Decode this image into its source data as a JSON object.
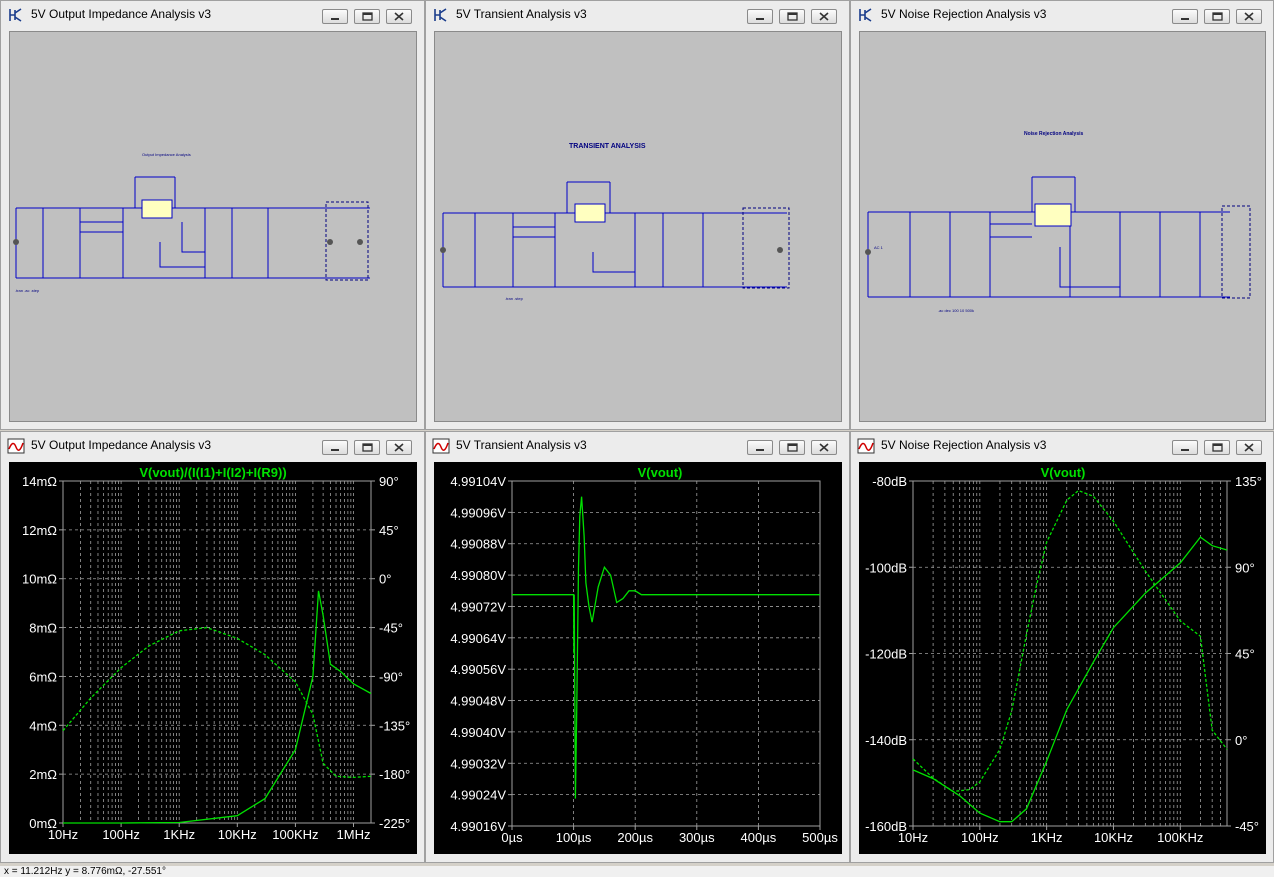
{
  "windows": {
    "sch1": {
      "title": "5V Output Impedance Analysis v3"
    },
    "sch2": {
      "title": "5V Transient Analysis v3"
    },
    "sch3": {
      "title": "5V Noise Rejection Analysis v3"
    },
    "plot1": {
      "title": "5V Output Impedance Analysis v3"
    },
    "plot2": {
      "title": "5V Transient Analysis v3"
    },
    "plot3": {
      "title": "5V Noise Rejection Analysis v3"
    }
  },
  "schematic_text": {
    "s2_heading": "TRANSIENT ANALYSIS",
    "s3_heading": "Noise Rejection Analysis",
    "s3_source_label": "AC 1"
  },
  "status": "x = 11.212Hz   y = 8.776mΩ, -27.551°",
  "colors": {
    "trace": "#00e000",
    "grid": "#a0a0a0",
    "axis_text": "#ffffff",
    "wire": "#0000c8"
  },
  "chart_data": [
    {
      "type": "line",
      "title": "V(vout)/(I(I1)+I(I2)+I(R9))",
      "x_scale": "log",
      "x_ticks": [
        "10Hz",
        "100Hz",
        "1KHz",
        "10KHz",
        "100KHz",
        "1MHz"
      ],
      "xlim_hz": [
        10,
        2000000
      ],
      "y_left_ticks": [
        "14mΩ",
        "12mΩ",
        "10mΩ",
        "8mΩ",
        "6mΩ",
        "4mΩ",
        "2mΩ",
        "0mΩ"
      ],
      "ylim_left_mohm": [
        0,
        14
      ],
      "y_right_ticks": [
        "90°",
        "45°",
        "0°",
        "-45°",
        "-90°",
        "-135°",
        "-180°",
        "-225°"
      ],
      "ylim_right_deg": [
        -225,
        90
      ],
      "series": [
        {
          "style": "solid",
          "x": [
            10,
            100,
            1000,
            10000,
            30000,
            100000,
            200000,
            250000,
            300000,
            400000,
            600000,
            1000000,
            2000000
          ],
          "y": [
            0,
            0,
            0.02,
            0.3,
            1.0,
            3.0,
            6.0,
            9.5,
            8.5,
            6.5,
            6.2,
            5.7,
            5.3
          ]
        },
        {
          "style": "dashed",
          "x": [
            10,
            30,
            100,
            300,
            1000,
            3000,
            10000,
            30000,
            100000,
            200000,
            300000,
            500000,
            1000000,
            2000000
          ],
          "y": [
            -140,
            -110,
            -82,
            -62,
            -48,
            -45,
            -55,
            -70,
            -95,
            -125,
            -170,
            -182,
            -183,
            -182
          ]
        }
      ]
    },
    {
      "type": "line",
      "title": "V(vout)",
      "x_ticks": [
        "0µs",
        "100µs",
        "200µs",
        "300µs",
        "400µs",
        "500µs"
      ],
      "xlim_us": [
        0,
        500
      ],
      "y_ticks": [
        "4.99104V",
        "4.99096V",
        "4.99088V",
        "4.99080V",
        "4.99072V",
        "4.99064V",
        "4.99056V",
        "4.99048V",
        "4.99040V",
        "4.99032V",
        "4.99024V",
        "4.99016V"
      ],
      "ylim_v": [
        4.99016,
        4.99104
      ],
      "series": [
        {
          "style": "solid",
          "x": [
            0,
            99.5,
            100,
            100.5,
            101,
            103,
            105,
            108,
            110,
            113,
            117,
            120,
            125,
            130,
            140,
            150,
            160,
            170,
            180,
            190,
            200,
            210,
            230,
            260,
            300,
            500
          ],
          "y": [
            4.99075,
            4.99075,
            4.99075,
            4.9906,
            4.99075,
            4.99023,
            4.99045,
            4.99082,
            4.99095,
            4.991,
            4.9909,
            4.99078,
            4.99072,
            4.99068,
            4.99077,
            4.99082,
            4.9908,
            4.99073,
            4.99074,
            4.99076,
            4.99076,
            4.99075,
            4.99075,
            4.99075,
            4.99075,
            4.99075
          ]
        }
      ]
    },
    {
      "type": "line",
      "title": "V(vout)",
      "x_scale": "log",
      "x_ticks": [
        "10Hz",
        "100Hz",
        "1KHz",
        "10KHz",
        "100KHz"
      ],
      "xlim_hz": [
        10,
        500000
      ],
      "y_left_ticks": [
        "-80dB",
        "-100dB",
        "-120dB",
        "-140dB",
        "-160dB"
      ],
      "ylim_left_db": [
        -160,
        -80
      ],
      "y_right_ticks": [
        "135°",
        "90°",
        "45°",
        "0°",
        "-45°"
      ],
      "ylim_right_deg": [
        -45,
        135
      ],
      "series": [
        {
          "style": "solid",
          "x": [
            10,
            20,
            50,
            100,
            200,
            300,
            500,
            1000,
            2000,
            5000,
            10000,
            30000,
            100000,
            200000,
            300000,
            500000
          ],
          "y": [
            -147,
            -149,
            -153,
            -157,
            -159,
            -159,
            -156,
            -145,
            -133,
            -122,
            -114,
            -106,
            -99,
            -93,
            -95,
            -96
          ]
        },
        {
          "style": "dashed",
          "x": [
            10,
            20,
            40,
            70,
            100,
            200,
            300,
            500,
            700,
            1000,
            2000,
            3000,
            5000,
            10000,
            30000,
            100000,
            200000,
            300000,
            500000
          ],
          "y": [
            -10,
            -20,
            -27,
            -26,
            -22,
            -5,
            15,
            55,
            80,
            103,
            125,
            130,
            127,
            114,
            88,
            62,
            54,
            5,
            -5
          ]
        }
      ]
    }
  ]
}
